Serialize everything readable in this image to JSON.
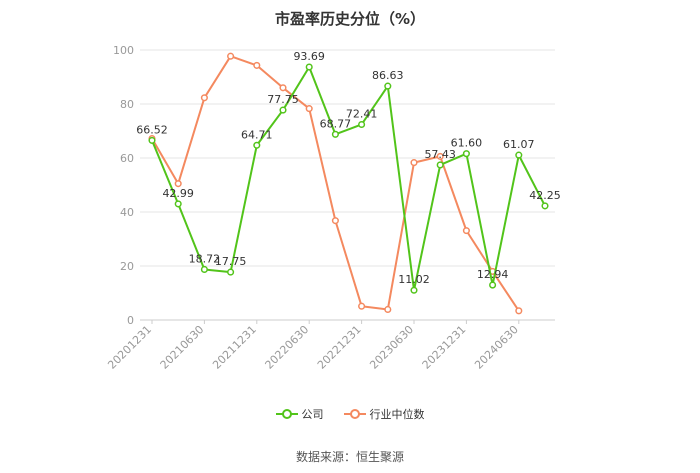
{
  "title": "市盈率历史分位（%）",
  "source": "数据来源：恒生聚源",
  "chart_data": {
    "type": "line",
    "title": "市盈率历史分位（%）",
    "ylim": [
      0,
      100
    ],
    "yticks": [
      0,
      20,
      40,
      60,
      80,
      100
    ],
    "xtick_labels": [
      "20201231",
      "20210630",
      "20211231",
      "20220630",
      "20221231",
      "20230630",
      "20231231",
      "20240630"
    ],
    "grid": true,
    "legend_position": "bottom",
    "series": [
      {
        "name": "公司",
        "color": "#52c41a",
        "x": [
          0,
          1,
          2,
          3,
          4,
          5,
          6,
          7,
          8,
          9,
          10,
          11,
          12,
          13,
          14,
          15
        ],
        "values": [
          66.52,
          42.99,
          18.72,
          17.75,
          64.71,
          77.75,
          93.69,
          68.77,
          72.41,
          86.63,
          11.02,
          57.43,
          61.6,
          12.94,
          61.07,
          42.25
        ],
        "labels": [
          "66.52",
          "42.99",
          "18.72",
          "17.75",
          "64.71",
          "77.75",
          "93.69",
          "68.77",
          "72.41",
          "86.63",
          "11.02",
          "57.43",
          "61.60",
          "12.94",
          "61.07",
          "42.25"
        ]
      },
      {
        "name": "行业中位数",
        "color": "#f4895f",
        "x": [
          0,
          1,
          2,
          3,
          4,
          5,
          6,
          7,
          8,
          9,
          10,
          11,
          12,
          13,
          14
        ],
        "values": [
          67.2,
          50.5,
          82.3,
          97.7,
          94.3,
          86.0,
          78.3,
          36.8,
          5.1,
          3.9,
          58.3,
          60.6,
          33.1,
          18.0,
          3.4
        ]
      }
    ]
  }
}
